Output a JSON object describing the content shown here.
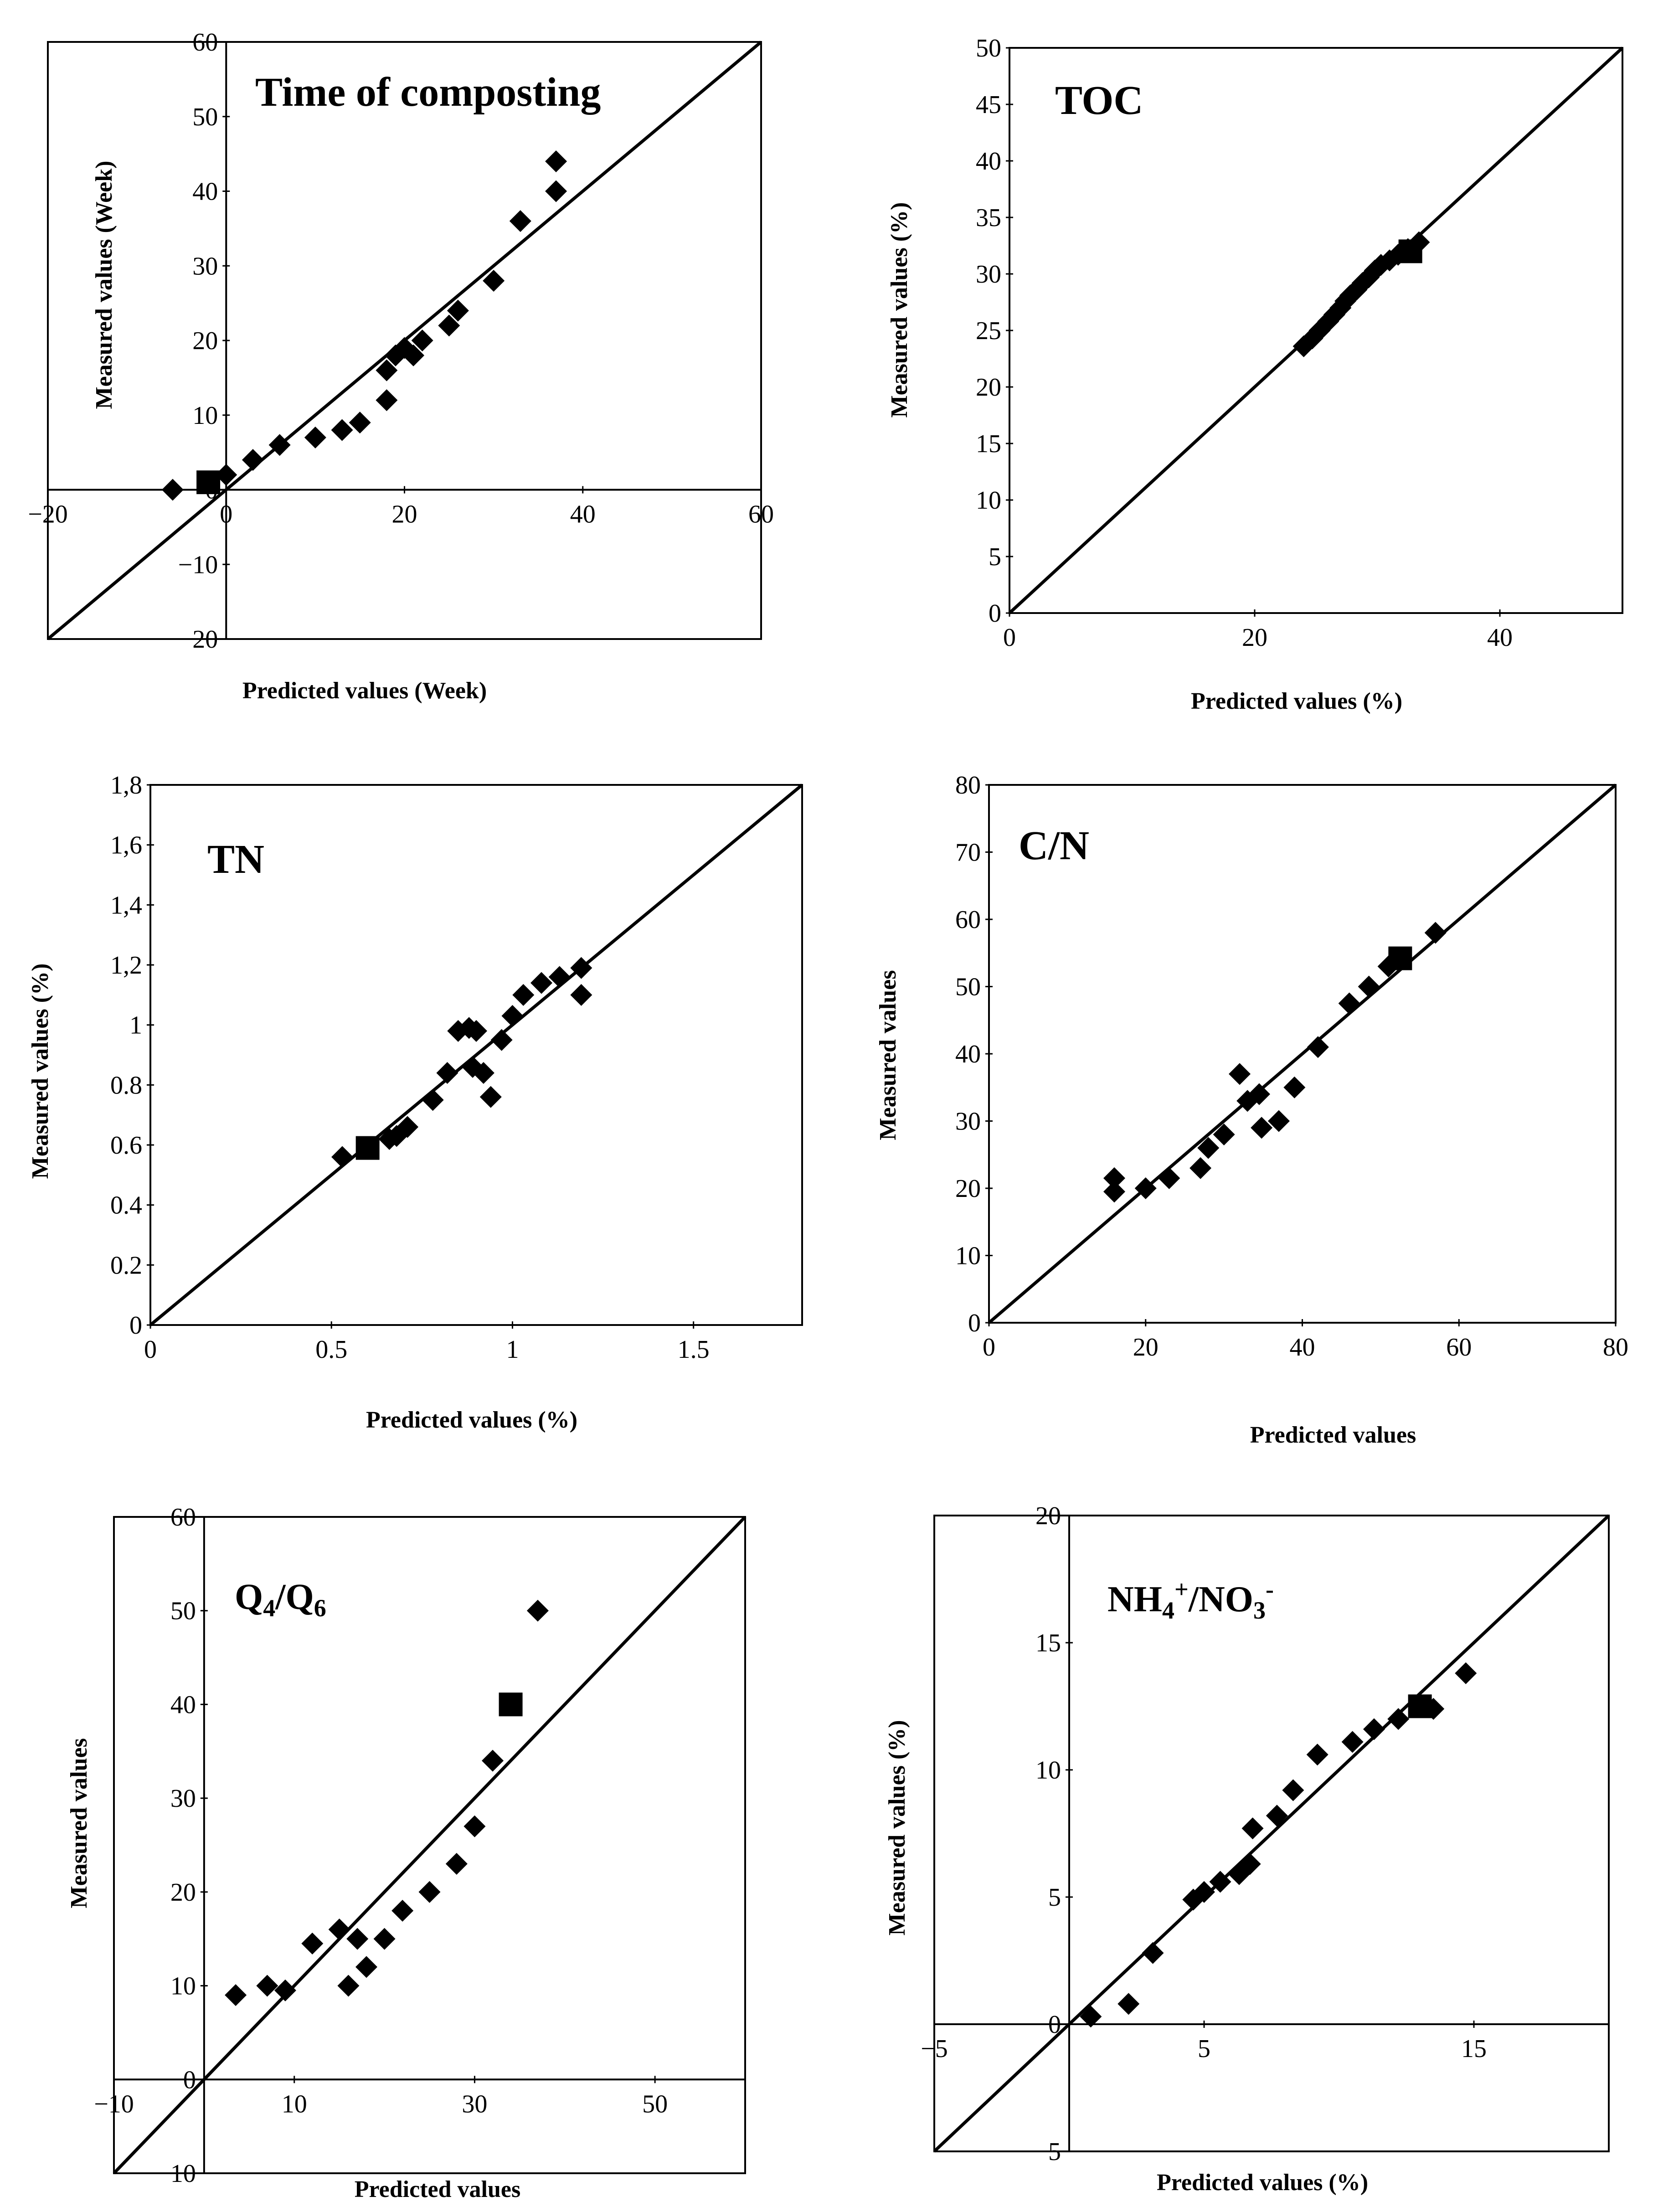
{
  "chart_data": [
    {
      "id": "time",
      "type": "scatter",
      "title": "Time of composting",
      "xlabel": "Predicted values (Week)",
      "ylabel": "Measured values (Week)",
      "xlim": [
        -20,
        60
      ],
      "ylim": [
        -20,
        60
      ],
      "xticks": [
        -20,
        0,
        20,
        40,
        60
      ],
      "yticks": [
        -20,
        -10,
        0,
        10,
        20,
        30,
        40,
        50,
        60
      ],
      "xtick_labels": [
        "−20",
        "0",
        "20",
        "40",
        "60"
      ],
      "ytick_labels": [
        "−20",
        "−10",
        "0",
        "10",
        "20",
        "30",
        "40",
        "50",
        "60"
      ],
      "axes_at_zero": true,
      "series": [
        {
          "name": "points",
          "marker": "diamond",
          "x": [
            -6,
            0,
            3,
            6,
            10,
            13,
            15,
            18,
            18,
            19,
            20,
            21,
            22,
            25,
            26,
            30,
            33,
            37,
            37
          ],
          "y": [
            0,
            2,
            4,
            6,
            7,
            8,
            9,
            12,
            16,
            18,
            19,
            18,
            20,
            22,
            24,
            28,
            36,
            40,
            44
          ]
        },
        {
          "name": "mean",
          "marker": "square",
          "x": [
            -2
          ],
          "y": [
            1
          ]
        }
      ]
    },
    {
      "id": "toc",
      "type": "scatter",
      "title": "TOC",
      "xlabel": "Predicted values (%)",
      "ylabel": "Measured values (%)",
      "xlim": [
        0,
        50
      ],
      "ylim": [
        0,
        50
      ],
      "xticks": [
        0,
        20,
        40
      ],
      "yticks": [
        0,
        5,
        10,
        15,
        20,
        25,
        30,
        35,
        40,
        45,
        50
      ],
      "xtick_labels": [
        "0",
        "20",
        "40"
      ],
      "ytick_labels": [
        "0",
        "5",
        "10",
        "15",
        "20",
        "25",
        "30",
        "35",
        "40",
        "45",
        "50"
      ],
      "axes_at_zero": false,
      "series": [
        {
          "name": "points",
          "marker": "diamond",
          "x": [
            24,
            24.7,
            25.3,
            26,
            26.5,
            27,
            27.4,
            27.8,
            28.3,
            28.8,
            29.3,
            29.8,
            30.3,
            31,
            31.7,
            32.5,
            33.4
          ],
          "y": [
            23.6,
            24.3,
            25,
            25.8,
            26.4,
            27,
            27.6,
            28.1,
            28.6,
            29.2,
            29.7,
            30.3,
            30.8,
            31.2,
            31.7,
            32.2,
            32.8
          ]
        },
        {
          "name": "mean",
          "marker": "square",
          "x": [
            32.7
          ],
          "y": [
            32
          ]
        }
      ]
    },
    {
      "id": "tn",
      "type": "scatter",
      "title": "TN",
      "xlabel": "Predicted values (%)",
      "ylabel": "Measured values (%)",
      "xlim": [
        0,
        1.8
      ],
      "ylim": [
        0,
        1.8
      ],
      "xticks": [
        0,
        0.5,
        1,
        1.5
      ],
      "yticks": [
        0,
        0.2,
        0.4,
        0.6,
        0.8,
        1,
        1.2,
        1.4,
        1.6,
        1.8
      ],
      "xtick_labels": [
        "0",
        "0.5",
        "1",
        "1.5"
      ],
      "ytick_labels": [
        "0",
        "0.2",
        "0.4",
        "0.6",
        "0.8",
        "1",
        "1,2",
        "1,4",
        "1,6",
        "1,8"
      ],
      "axes_at_zero": false,
      "series": [
        {
          "name": "points",
          "marker": "diamond",
          "x": [
            0.53,
            0.66,
            0.68,
            0.71,
            0.78,
            0.82,
            0.85,
            0.88,
            0.89,
            0.9,
            0.92,
            0.94,
            0.97,
            1.0,
            1.03,
            1.08,
            1.13,
            1.19,
            1.19
          ],
          "y": [
            0.56,
            0.62,
            0.63,
            0.66,
            0.75,
            0.84,
            0.98,
            0.99,
            0.86,
            0.98,
            0.84,
            0.76,
            0.95,
            1.03,
            1.1,
            1.14,
            1.16,
            1.1,
            1.19
          ]
        },
        {
          "name": "mean",
          "marker": "square",
          "x": [
            0.6
          ],
          "y": [
            0.59
          ]
        }
      ]
    },
    {
      "id": "cn",
      "type": "scatter",
      "title": "C/N",
      "xlabel": "Predicted values",
      "ylabel": "Measured values",
      "xlim": [
        0,
        80
      ],
      "ylim": [
        0,
        80
      ],
      "xticks": [
        0,
        20,
        40,
        60,
        80
      ],
      "yticks": [
        0,
        10,
        20,
        30,
        40,
        50,
        60,
        70,
        80
      ],
      "xtick_labels": [
        "0",
        "20",
        "40",
        "60",
        "80"
      ],
      "ytick_labels": [
        "0",
        "10",
        "20",
        "30",
        "40",
        "50",
        "60",
        "70",
        "80"
      ],
      "axes_at_zero": false,
      "series": [
        {
          "name": "points",
          "marker": "diamond",
          "x": [
            16,
            16,
            20,
            23,
            27,
            28,
            30,
            32,
            33,
            34.5,
            34.8,
            37,
            39,
            42,
            46,
            48.5,
            51,
            57
          ],
          "y": [
            19.5,
            21.5,
            20,
            21.5,
            23,
            26,
            28,
            37,
            33,
            34,
            29,
            30,
            35,
            41,
            47.5,
            50,
            53,
            58
          ]
        },
        {
          "name": "mean",
          "marker": "square",
          "x": [
            52.5
          ],
          "y": [
            54.2
          ]
        }
      ]
    },
    {
      "id": "q4q6",
      "type": "scatter",
      "title": "Q4/Q6",
      "title_main": "Q",
      "title_sub1": "4",
      "title_sep": "/Q",
      "title_sub2": "6",
      "xlabel": "Predicted values",
      "ylabel": "Measured values",
      "xlim": [
        -10,
        60
      ],
      "ylim": [
        -10,
        60
      ],
      "xticks": [
        -10,
        10,
        30,
        50
      ],
      "yticks": [
        -10,
        0,
        10,
        20,
        30,
        40,
        50,
        60
      ],
      "xtick_labels": [
        "−10",
        "10",
        "30",
        "50"
      ],
      "ytick_labels": [
        "−10",
        "0",
        "10",
        "20",
        "30",
        "40",
        "50",
        "60"
      ],
      "axes_at_zero": true,
      "series": [
        {
          "name": "points",
          "marker": "diamond",
          "x": [
            3.5,
            7,
            9,
            12,
            15,
            16,
            17,
            18,
            20,
            22,
            25,
            28,
            30,
            32,
            37
          ],
          "y": [
            9,
            10,
            9.5,
            14.5,
            16,
            10,
            15,
            12,
            15,
            18,
            20,
            23,
            27,
            34,
            50
          ]
        },
        {
          "name": "mean",
          "marker": "square",
          "x": [
            34
          ],
          "y": [
            40
          ]
        }
      ]
    },
    {
      "id": "nh4no3",
      "type": "scatter",
      "title": "NH4+/NO3-",
      "title_main": "NH",
      "title_sub1": "4",
      "title_sup1": "+",
      "title_sep": "/NO",
      "title_sub2": "3",
      "title_sup2": "-",
      "xlabel": "Predicted values (%)",
      "ylabel": "Measured values (%)",
      "xlim": [
        -5,
        20
      ],
      "ylim": [
        -5,
        20
      ],
      "xticks": [
        -5,
        5,
        15
      ],
      "yticks": [
        -5,
        0,
        5,
        10,
        15,
        20
      ],
      "xtick_labels": [
        "−5",
        "5",
        "15"
      ],
      "ytick_labels": [
        "−5",
        "0",
        "5",
        "10",
        "15",
        "20"
      ],
      "axes_at_zero": true,
      "series": [
        {
          "name": "points",
          "marker": "diamond",
          "x": [
            0.8,
            2.2,
            3.1,
            4.6,
            5,
            5.6,
            6.3,
            6.7,
            6.8,
            7.7,
            8.3,
            9.2,
            10.5,
            11.3,
            12.2,
            13.5,
            14.7
          ],
          "y": [
            0.3,
            0.8,
            2.8,
            4.9,
            5.2,
            5.6,
            5.9,
            6.3,
            7.7,
            8.2,
            9.2,
            10.6,
            11.1,
            11.6,
            12,
            12.4,
            13.8
          ]
        },
        {
          "name": "mean",
          "marker": "square",
          "x": [
            13
          ],
          "y": [
            12.5
          ]
        }
      ]
    }
  ]
}
